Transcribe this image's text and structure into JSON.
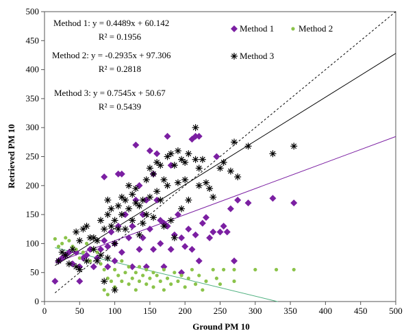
{
  "chart_data": {
    "type": "scatter",
    "title": "",
    "xlabel": "Ground PM 10",
    "ylabel": "Retrieved PM 10",
    "xlim": [
      0,
      500
    ],
    "ylim": [
      0,
      500
    ],
    "xticks": [
      0,
      50,
      100,
      150,
      200,
      250,
      300,
      350,
      400,
      450,
      500
    ],
    "yticks": [
      0,
      50,
      100,
      150,
      200,
      250,
      300,
      350,
      400,
      450,
      500
    ],
    "tick_labels_x": [
      "0",
      "50",
      "100",
      "150",
      "200",
      "250",
      "300",
      "350",
      "400",
      "450",
      "500"
    ],
    "tick_labels_y": [
      "0",
      "50",
      "100",
      "150",
      "200",
      "250",
      "300",
      "350",
      "400",
      "450",
      "500"
    ],
    "grid": false,
    "legend_position": "top-right",
    "series": [
      {
        "name": "Method 1",
        "marker": "diamond",
        "color": "#7b1fa2",
        "points": [
          [
            15,
            35
          ],
          [
            20,
            70
          ],
          [
            25,
            75
          ],
          [
            30,
            80
          ],
          [
            35,
            85
          ],
          [
            40,
            65
          ],
          [
            45,
            85
          ],
          [
            50,
            35
          ],
          [
            50,
            60
          ],
          [
            55,
            75
          ],
          [
            60,
            80
          ],
          [
            65,
            90
          ],
          [
            70,
            60
          ],
          [
            75,
            75
          ],
          [
            80,
            90
          ],
          [
            85,
            215
          ],
          [
            85,
            105
          ],
          [
            90,
            95
          ],
          [
            90,
            60
          ],
          [
            95,
            120
          ],
          [
            100,
            100
          ],
          [
            100,
            70
          ],
          [
            105,
            220
          ],
          [
            105,
            130
          ],
          [
            110,
            220
          ],
          [
            110,
            85
          ],
          [
            115,
            150
          ],
          [
            120,
            110
          ],
          [
            125,
            130
          ],
          [
            125,
            60
          ],
          [
            130,
            270
          ],
          [
            130,
            175
          ],
          [
            135,
            90
          ],
          [
            135,
            200
          ],
          [
            140,
            110
          ],
          [
            140,
            150
          ],
          [
            145,
            175
          ],
          [
            145,
            60
          ],
          [
            150,
            260
          ],
          [
            150,
            125
          ],
          [
            155,
            220
          ],
          [
            155,
            90
          ],
          [
            160,
            255
          ],
          [
            160,
            175
          ],
          [
            165,
            140
          ],
          [
            165,
            100
          ],
          [
            170,
            135
          ],
          [
            170,
            60
          ],
          [
            175,
            285
          ],
          [
            175,
            130
          ],
          [
            180,
            235
          ],
          [
            180,
            90
          ],
          [
            185,
            115
          ],
          [
            190,
            150
          ],
          [
            195,
            110
          ],
          [
            195,
            50
          ],
          [
            200,
            95
          ],
          [
            205,
            125
          ],
          [
            210,
            280
          ],
          [
            210,
            90
          ],
          [
            215,
            285
          ],
          [
            215,
            115
          ],
          [
            220,
            285
          ],
          [
            220,
            70
          ],
          [
            225,
            135
          ],
          [
            230,
            145
          ],
          [
            235,
            110
          ],
          [
            240,
            120
          ],
          [
            245,
            250
          ],
          [
            250,
            120
          ],
          [
            255,
            130
          ],
          [
            260,
            120
          ],
          [
            265,
            160
          ],
          [
            270,
            70
          ],
          [
            275,
            175
          ],
          [
            290,
            170
          ],
          [
            325,
            178
          ],
          [
            355,
            170
          ]
        ]
      },
      {
        "name": "Method 2",
        "marker": "circle",
        "color": "#8bc34a",
        "points": [
          [
            15,
            108
          ],
          [
            20,
            95
          ],
          [
            25,
            100
          ],
          [
            30,
            110
          ],
          [
            35,
            105
          ],
          [
            40,
            95
          ],
          [
            45,
            90
          ],
          [
            50,
            75
          ],
          [
            55,
            85
          ],
          [
            60,
            100
          ],
          [
            65,
            70
          ],
          [
            70,
            90
          ],
          [
            75,
            85
          ],
          [
            80,
            65
          ],
          [
            85,
            55
          ],
          [
            85,
            20
          ],
          [
            90,
            40
          ],
          [
            90,
            12
          ],
          [
            95,
            35
          ],
          [
            100,
            55
          ],
          [
            100,
            25
          ],
          [
            105,
            45
          ],
          [
            110,
            35
          ],
          [
            110,
            70
          ],
          [
            115,
            50
          ],
          [
            120,
            30
          ],
          [
            120,
            60
          ],
          [
            125,
            40
          ],
          [
            130,
            50
          ],
          [
            130,
            20
          ],
          [
            135,
            35
          ],
          [
            135,
            60
          ],
          [
            140,
            45
          ],
          [
            145,
            30
          ],
          [
            145,
            55
          ],
          [
            150,
            40
          ],
          [
            155,
            50
          ],
          [
            155,
            25
          ],
          [
            160,
            45
          ],
          [
            165,
            35
          ],
          [
            170,
            55
          ],
          [
            170,
            20
          ],
          [
            175,
            40
          ],
          [
            180,
            30
          ],
          [
            185,
            50
          ],
          [
            190,
            35
          ],
          [
            195,
            45
          ],
          [
            200,
            25
          ],
          [
            205,
            40
          ],
          [
            210,
            55
          ],
          [
            215,
            30
          ],
          [
            220,
            45
          ],
          [
            225,
            20
          ],
          [
            230,
            35
          ],
          [
            240,
            55
          ],
          [
            245,
            40
          ],
          [
            250,
            30
          ],
          [
            255,
            55
          ],
          [
            270,
            55
          ],
          [
            270,
            35
          ],
          [
            300,
            55
          ],
          [
            330,
            55
          ],
          [
            355,
            55
          ]
        ]
      },
      {
        "name": "Method 3",
        "marker": "asterisk",
        "color": "#000000",
        "points": [
          [
            20,
            70
          ],
          [
            25,
            85
          ],
          [
            30,
            80
          ],
          [
            35,
            65
          ],
          [
            40,
            90
          ],
          [
            45,
            120
          ],
          [
            45,
            60
          ],
          [
            50,
            105
          ],
          [
            50,
            55
          ],
          [
            55,
            125
          ],
          [
            60,
            130
          ],
          [
            60,
            70
          ],
          [
            65,
            110
          ],
          [
            70,
            110
          ],
          [
            70,
            90
          ],
          [
            75,
            105
          ],
          [
            75,
            70
          ],
          [
            80,
            140
          ],
          [
            80,
            80
          ],
          [
            85,
            125
          ],
          [
            85,
            35
          ],
          [
            90,
            175
          ],
          [
            90,
            150
          ],
          [
            90,
            75
          ],
          [
            95,
            160
          ],
          [
            95,
            130
          ],
          [
            100,
            140
          ],
          [
            100,
            100
          ],
          [
            100,
            20
          ],
          [
            105,
            165
          ],
          [
            105,
            125
          ],
          [
            110,
            180
          ],
          [
            110,
            150
          ],
          [
            115,
            175
          ],
          [
            115,
            125
          ],
          [
            120,
            200
          ],
          [
            120,
            160
          ],
          [
            125,
            185
          ],
          [
            125,
            140
          ],
          [
            130,
            195
          ],
          [
            130,
            170
          ],
          [
            135,
            165
          ],
          [
            135,
            115
          ],
          [
            140,
            175
          ],
          [
            140,
            135
          ],
          [
            145,
            210
          ],
          [
            145,
            150
          ],
          [
            150,
            230
          ],
          [
            150,
            180
          ],
          [
            155,
            220
          ],
          [
            155,
            145
          ],
          [
            160,
            240
          ],
          [
            160,
            190
          ],
          [
            165,
            235
          ],
          [
            165,
            175
          ],
          [
            170,
            210
          ],
          [
            170,
            130
          ],
          [
            175,
            250
          ],
          [
            175,
            200
          ],
          [
            180,
            255
          ],
          [
            180,
            140
          ],
          [
            185,
            235
          ],
          [
            185,
            110
          ],
          [
            190,
            260
          ],
          [
            190,
            205
          ],
          [
            195,
            245
          ],
          [
            195,
            160
          ],
          [
            200,
            240
          ],
          [
            200,
            210
          ],
          [
            205,
            255
          ],
          [
            205,
            175
          ],
          [
            215,
            300
          ],
          [
            215,
            245
          ],
          [
            220,
            230
          ],
          [
            220,
            200
          ],
          [
            225,
            245
          ],
          [
            230,
            205
          ],
          [
            235,
            195
          ],
          [
            240,
            180
          ],
          [
            250,
            230
          ],
          [
            255,
            240
          ],
          [
            265,
            225
          ],
          [
            270,
            275
          ],
          [
            275,
            215
          ],
          [
            290,
            268
          ],
          [
            325,
            255
          ],
          [
            355,
            268
          ]
        ]
      }
    ],
    "trendlines": [
      {
        "series": "Method 1",
        "color": "#7b1fa2",
        "slope": 0.4489,
        "intercept": 60.142,
        "x_range": [
          15,
          500
        ]
      },
      {
        "series": "Method 2",
        "color": "#4caf7d",
        "slope": -0.2935,
        "intercept": 97.306,
        "x_range": [
          15,
          332
        ]
      },
      {
        "series": "Method 3",
        "color": "#000000",
        "slope": 0.7545,
        "intercept": 50.67,
        "x_range": [
          15,
          500
        ]
      },
      {
        "series": "1:1",
        "color": "#000000",
        "dashed": true,
        "slope": 1,
        "intercept": 0,
        "x_range": [
          15,
          500
        ]
      }
    ],
    "annotations": [
      {
        "id": "m1-eq",
        "text": "Method 1: y = 0.4489x + 60.142"
      },
      {
        "id": "m1-r2",
        "text": "R² = 0.1956"
      },
      {
        "id": "m2-eq",
        "text": "Method 2: y = -0.2935x + 97.306"
      },
      {
        "id": "m2-r2",
        "text": "R² = 0.2818"
      },
      {
        "id": "m3-eq",
        "text": "Method 3: y = 0.7545x + 50.67"
      },
      {
        "id": "m3-r2",
        "text": "R² = 0.5439"
      }
    ]
  }
}
